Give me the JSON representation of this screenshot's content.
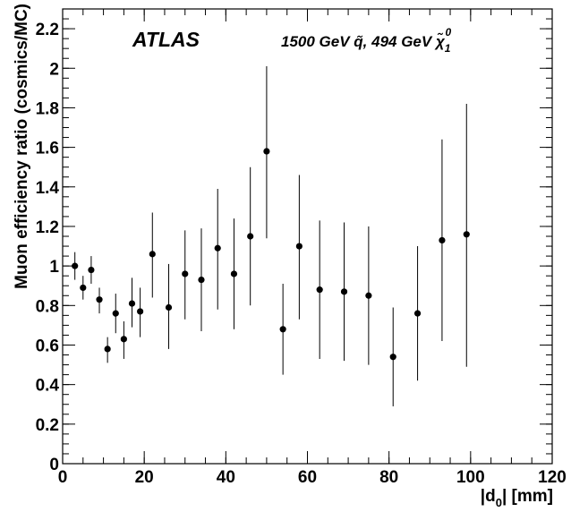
{
  "chart_data": {
    "type": "scatter",
    "title": "ATLAS",
    "subtitle": "1500 GeV q̃, 494 GeV χ̃",
    "subtitle_sub": "1",
    "subtitle_sup": "0",
    "xlabel": "|d",
    "xlabel_sub": "0",
    "xlabel_suffix": "| [mm]",
    "ylabel": "Muon efficiency ratio (cosmics/MC)",
    "xlim": [
      0,
      120
    ],
    "ylim": [
      0,
      2.3
    ],
    "xticks": [
      0,
      20,
      40,
      60,
      80,
      100,
      120
    ],
    "yticks": [
      0,
      0.2,
      0.4,
      0.6,
      0.8,
      1,
      1.2,
      1.4,
      1.6,
      1.8,
      2,
      2.2
    ],
    "xtick_labels": [
      "0",
      "20",
      "40",
      "60",
      "80",
      "100",
      "120"
    ],
    "ytick_labels": [
      "0",
      "0.2",
      "0.4",
      "0.6",
      "0.8",
      "1",
      "1.2",
      "1.4",
      "1.6",
      "1.8",
      "2",
      "2.2"
    ],
    "grid": false,
    "points": [
      {
        "x": 3,
        "y": 1.0,
        "ylow": 0.93,
        "yhigh": 1.07
      },
      {
        "x": 5,
        "y": 0.89,
        "ylow": 0.83,
        "yhigh": 0.95
      },
      {
        "x": 7,
        "y": 0.98,
        "ylow": 0.91,
        "yhigh": 1.05
      },
      {
        "x": 9,
        "y": 0.83,
        "ylow": 0.76,
        "yhigh": 0.89
      },
      {
        "x": 11,
        "y": 0.58,
        "ylow": 0.51,
        "yhigh": 0.64
      },
      {
        "x": 13,
        "y": 0.76,
        "ylow": 0.66,
        "yhigh": 0.86
      },
      {
        "x": 15,
        "y": 0.63,
        "ylow": 0.53,
        "yhigh": 0.72
      },
      {
        "x": 17,
        "y": 0.81,
        "ylow": 0.69,
        "yhigh": 0.94
      },
      {
        "x": 19,
        "y": 0.77,
        "ylow": 0.64,
        "yhigh": 0.89
      },
      {
        "x": 22,
        "y": 1.06,
        "ylow": 0.84,
        "yhigh": 1.27
      },
      {
        "x": 26,
        "y": 0.79,
        "ylow": 0.58,
        "yhigh": 1.01
      },
      {
        "x": 30,
        "y": 0.96,
        "ylow": 0.73,
        "yhigh": 1.18
      },
      {
        "x": 34,
        "y": 0.93,
        "ylow": 0.67,
        "yhigh": 1.19
      },
      {
        "x": 38,
        "y": 1.09,
        "ylow": 0.78,
        "yhigh": 1.39
      },
      {
        "x": 42,
        "y": 0.96,
        "ylow": 0.68,
        "yhigh": 1.24
      },
      {
        "x": 46,
        "y": 1.15,
        "ylow": 0.8,
        "yhigh": 1.5
      },
      {
        "x": 50,
        "y": 1.58,
        "ylow": 1.14,
        "yhigh": 2.01
      },
      {
        "x": 54,
        "y": 0.68,
        "ylow": 0.45,
        "yhigh": 0.91
      },
      {
        "x": 58,
        "y": 1.1,
        "ylow": 0.73,
        "yhigh": 1.46
      },
      {
        "x": 63,
        "y": 0.88,
        "ylow": 0.53,
        "yhigh": 1.23
      },
      {
        "x": 69,
        "y": 0.87,
        "ylow": 0.52,
        "yhigh": 1.22
      },
      {
        "x": 75,
        "y": 0.85,
        "ylow": 0.5,
        "yhigh": 1.2
      },
      {
        "x": 81,
        "y": 0.54,
        "ylow": 0.29,
        "yhigh": 0.79
      },
      {
        "x": 87,
        "y": 0.76,
        "ylow": 0.42,
        "yhigh": 1.1
      },
      {
        "x": 93,
        "y": 1.13,
        "ylow": 0.62,
        "yhigh": 1.64
      },
      {
        "x": 99,
        "y": 1.16,
        "ylow": 0.49,
        "yhigh": 1.82
      }
    ]
  }
}
